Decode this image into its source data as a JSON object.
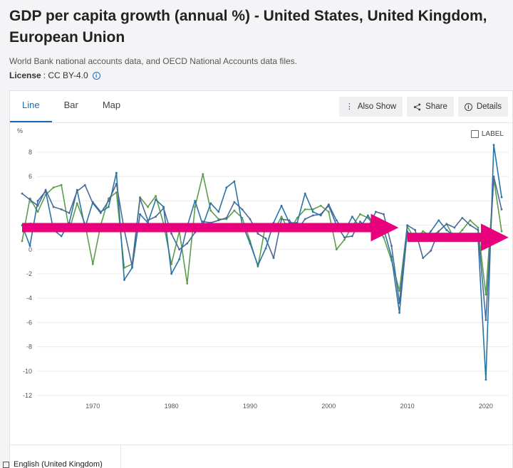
{
  "header": {
    "title": "GDP per capita growth (annual %) - United States, United Kingdom, European Union",
    "source": "World Bank national accounts data, and OECD National Accounts data files.",
    "license_label": "License",
    "license_value": ": CC BY-4.0",
    "info_icon": "info-circle-icon"
  },
  "tabs": [
    {
      "label": "Line",
      "active": true
    },
    {
      "label": "Bar",
      "active": false
    },
    {
      "label": "Map",
      "active": false
    }
  ],
  "toolbar": {
    "also_show": "Also Show",
    "share": "Share",
    "details": "Details"
  },
  "label_toggle": "LABEL",
  "language": "English (United Kingdom)",
  "colors": {
    "us": "#5a9e4b",
    "uk": "#2874a6",
    "eu": "#4a6a9a",
    "highlight": "#e8007d",
    "accent": "#1c6bb0"
  },
  "chart_data": {
    "type": "line",
    "y_unit_label": "%",
    "ylim": [
      -12,
      8
    ],
    "yticks": [
      8,
      6,
      4,
      2,
      0,
      -2,
      -4,
      -6,
      -8,
      -10,
      -12
    ],
    "xlim": [
      1961,
      2022
    ],
    "xticks": [
      1970,
      1980,
      1990,
      2000,
      2010,
      2020
    ],
    "grid": "horizontal",
    "series": [
      {
        "key": "us",
        "x": [
          1961,
          1962,
          1963,
          1964,
          1965,
          1966,
          1967,
          1968,
          1969,
          1970,
          1971,
          1972,
          1973,
          1974,
          1975,
          1976,
          1977,
          1978,
          1979,
          1980,
          1981,
          1982,
          1983,
          1984,
          1985,
          1986,
          1987,
          1988,
          1989,
          1990,
          1991,
          1992,
          1993,
          1994,
          1995,
          1996,
          1997,
          1998,
          1999,
          2000,
          2001,
          2002,
          2003,
          2004,
          2005,
          2006,
          2007,
          2008,
          2009,
          2010,
          2011,
          2012,
          2013,
          2014,
          2015,
          2016,
          2017,
          2018,
          2019,
          2020,
          2021,
          2022
        ],
        "values": [
          0.7,
          4.2,
          3.1,
          4.5,
          5.1,
          5.3,
          1.6,
          3.8,
          2.1,
          -1.2,
          2.0,
          4.2,
          4.7,
          -1.5,
          -1.2,
          4.3,
          3.5,
          4.4,
          2.1,
          -1.2,
          1.5,
          -2.8,
          3.5,
          6.2,
          3.2,
          2.5,
          2.5,
          3.2,
          2.6,
          0.7,
          -1.4,
          2.1,
          1.5,
          2.7,
          1.5,
          2.6,
          3.3,
          3.3,
          3.6,
          3.1,
          0.0,
          0.8,
          1.9,
          2.9,
          2.6,
          1.8,
          1.0,
          -0.9,
          -3.4,
          1.9,
          0.8,
          1.5,
          1.1,
          1.5,
          2.1,
          0.9,
          1.6,
          2.4,
          1.8,
          -3.7,
          5.8,
          1.5
        ]
      },
      {
        "key": "uk",
        "x": [
          1961,
          1962,
          1963,
          1964,
          1965,
          1966,
          1967,
          1968,
          1969,
          1970,
          1971,
          1972,
          1973,
          1974,
          1975,
          1976,
          1977,
          1978,
          1979,
          1980,
          1981,
          1982,
          1983,
          1984,
          1985,
          1986,
          1987,
          1988,
          1989,
          1990,
          1991,
          1992,
          1993,
          1994,
          1995,
          1996,
          1997,
          1998,
          1999,
          2000,
          2001,
          2002,
          2003,
          2004,
          2005,
          2006,
          2007,
          2008,
          2009,
          2010,
          2011,
          2012,
          2013,
          2014,
          2015,
          2016,
          2017,
          2018,
          2019,
          2020,
          2021,
          2022
        ],
        "values": [
          2.0,
          0.3,
          4.0,
          4.8,
          1.6,
          1.1,
          2.2,
          4.9,
          1.8,
          3.9,
          3.1,
          3.5,
          6.3,
          -2.5,
          -1.5,
          2.9,
          2.2,
          4.1,
          3.5,
          -2.0,
          -0.8,
          1.9,
          4.0,
          2.0,
          3.8,
          3.1,
          5.1,
          5.6,
          2.1,
          0.5,
          -1.3,
          0.1,
          2.2,
          3.6,
          2.2,
          2.2,
          4.6,
          3.1,
          2.8,
          3.7,
          2.4,
          1.5,
          2.7,
          1.8,
          2.8,
          1.8,
          1.7,
          -0.6,
          -5.2,
          1.5,
          0.7,
          0.8,
          1.5,
          2.4,
          1.6,
          1.1,
          1.2,
          0.9,
          1.0,
          -10.7,
          8.6,
          4.3
        ]
      },
      {
        "key": "eu",
        "x": [
          1961,
          1962,
          1963,
          1964,
          1965,
          1966,
          1967,
          1968,
          1969,
          1970,
          1971,
          1972,
          1973,
          1974,
          1975,
          1976,
          1977,
          1978,
          1979,
          1980,
          1981,
          1982,
          1983,
          1984,
          1985,
          1986,
          1987,
          1988,
          1989,
          1990,
          1991,
          1992,
          1993,
          1994,
          1995,
          1996,
          1997,
          1998,
          1999,
          2000,
          2001,
          2002,
          2003,
          2004,
          2005,
          2006,
          2007,
          2008,
          2009,
          2010,
          2011,
          2012,
          2013,
          2014,
          2015,
          2016,
          2017,
          2018,
          2019,
          2020,
          2021,
          2022
        ],
        "values": [
          4.6,
          4.1,
          3.6,
          4.9,
          3.5,
          3.3,
          3.0,
          4.8,
          5.3,
          3.8,
          3.0,
          4.0,
          5.4,
          1.6,
          -1.4,
          4.2,
          2.4,
          2.7,
          3.4,
          1.3,
          0.0,
          0.5,
          1.4,
          2.3,
          2.2,
          2.4,
          2.6,
          3.9,
          3.3,
          2.5,
          1.3,
          0.9,
          -0.7,
          2.5,
          2.4,
          1.6,
          2.5,
          2.8,
          2.9,
          3.6,
          2.0,
          1.0,
          1.1,
          2.3,
          1.8,
          3.1,
          2.9,
          0.3,
          -4.4,
          2.0,
          1.6,
          -0.7,
          -0.1,
          1.5,
          2.1,
          1.8,
          2.6,
          2.0,
          1.6,
          -5.8,
          6.0,
          3.3
        ]
      }
    ],
    "annotation_arrows": [
      {
        "from_year": 1961,
        "to_year": 2007,
        "value": 1.8
      },
      {
        "from_year": 2010,
        "to_year": 2021,
        "value": 1.0
      }
    ]
  }
}
